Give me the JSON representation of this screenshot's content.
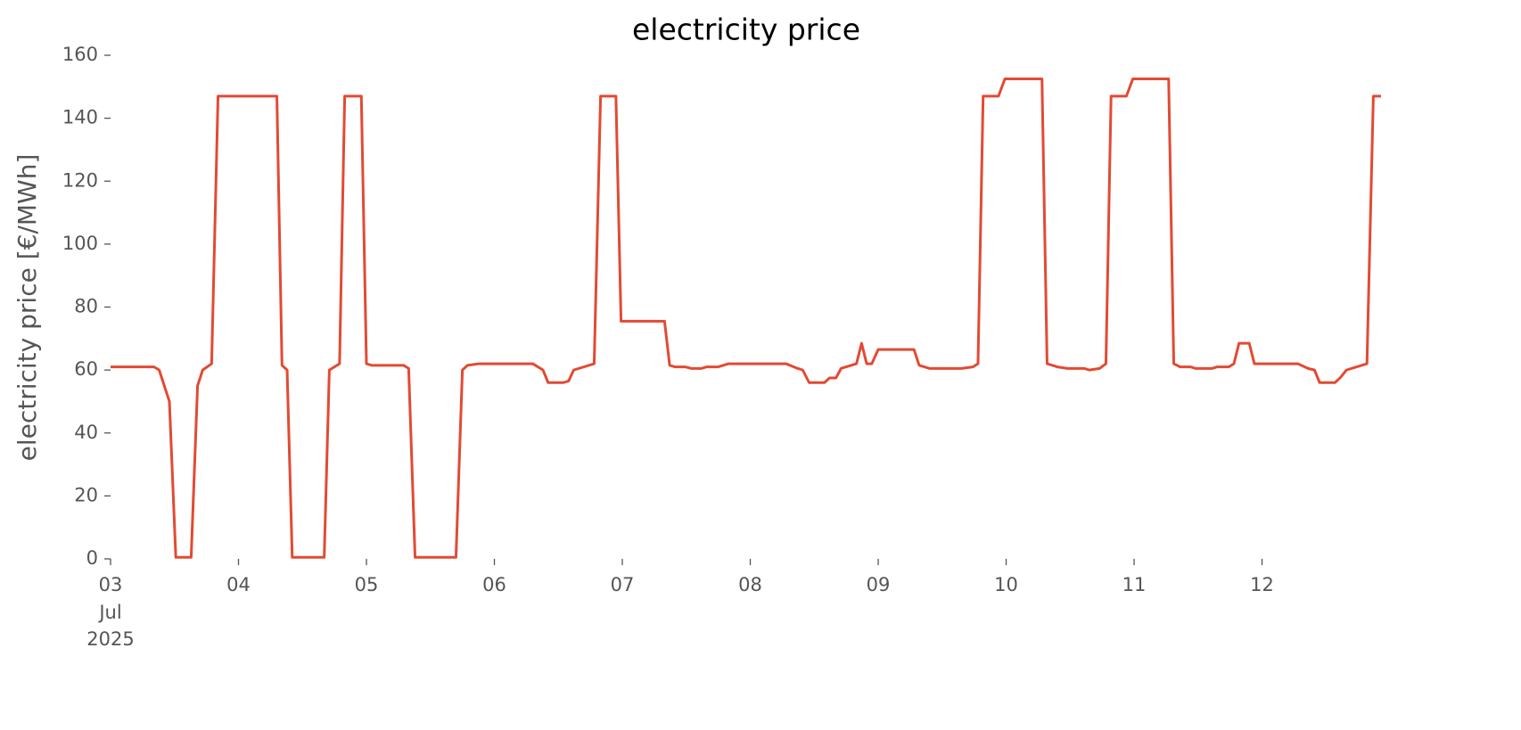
{
  "chart_data": {
    "type": "line",
    "title": "electricity price",
    "ylabel": "electricity price [€/MWh]",
    "x": [
      3.0,
      3.34,
      3.38,
      3.46,
      3.51,
      3.63,
      3.68,
      3.72,
      3.79,
      3.84,
      4.3,
      4.34,
      4.38,
      4.42,
      4.67,
      4.71,
      4.79,
      4.83,
      4.96,
      5.0,
      5.04,
      5.29,
      5.33,
      5.38,
      5.7,
      5.75,
      5.79,
      5.88,
      6.3,
      6.38,
      6.42,
      6.54,
      6.58,
      6.62,
      6.78,
      6.83,
      6.95,
      6.99,
      7.33,
      7.37,
      7.41,
      7.49,
      7.54,
      7.62,
      7.66,
      7.75,
      7.83,
      8.28,
      8.37,
      8.41,
      8.46,
      8.58,
      8.62,
      8.67,
      8.71,
      8.83,
      8.87,
      8.91,
      8.95,
      9.0,
      9.28,
      9.32,
      9.4,
      9.65,
      9.74,
      9.78,
      9.82,
      9.94,
      9.99,
      10.28,
      10.32,
      10.4,
      10.48,
      10.61,
      10.65,
      10.73,
      10.78,
      10.82,
      10.94,
      10.99,
      11.27,
      11.31,
      11.36,
      11.44,
      11.48,
      11.61,
      11.65,
      11.74,
      11.78,
      11.82,
      11.9,
      11.94,
      12.28,
      12.36,
      12.41,
      12.45,
      12.57,
      12.61,
      12.66,
      12.82,
      12.87,
      12.93
    ],
    "values": [
      61,
      61,
      60,
      50,
      0.5,
      0.5,
      55,
      60,
      62,
      147,
      147,
      61.5,
      60,
      0.5,
      0.5,
      60,
      62,
      147,
      147,
      62,
      61.5,
      61.5,
      60.5,
      0.5,
      0.5,
      60,
      61.5,
      62,
      62,
      60,
      56,
      56,
      56.5,
      60,
      62,
      147,
      147,
      75.5,
      75.5,
      61.5,
      61,
      61,
      60.5,
      60.5,
      61,
      61,
      62,
      62,
      60.5,
      60,
      56,
      56,
      57.5,
      57.5,
      60.5,
      62,
      68.5,
      62,
      62,
      66.5,
      66.5,
      61.5,
      60.5,
      60.5,
      61,
      62,
      147,
      147,
      152.5,
      152.5,
      62,
      61,
      60.5,
      60.5,
      60,
      60.5,
      62,
      147,
      147,
      152.5,
      152.5,
      62,
      61,
      61,
      60.5,
      60.5,
      61,
      61,
      62,
      68.5,
      68.5,
      62,
      62,
      60.5,
      60,
      56,
      56,
      57.5,
      60,
      62,
      147,
      147
    ],
    "color": "#e24a33",
    "xlim": [
      3,
      12.93
    ],
    "xticks": [
      {
        "value": 3,
        "label": "03"
      },
      {
        "value": 4,
        "label": "04"
      },
      {
        "value": 5,
        "label": "05"
      },
      {
        "value": 6,
        "label": "06"
      },
      {
        "value": 7,
        "label": "07"
      },
      {
        "value": 8,
        "label": "08"
      },
      {
        "value": 9,
        "label": "09"
      },
      {
        "value": 10,
        "label": "10"
      },
      {
        "value": 11,
        "label": "11"
      },
      {
        "value": 12,
        "label": "12"
      }
    ],
    "x_tick_sublabels": [
      "Jul",
      "2025"
    ],
    "ylim": [
      0,
      160
    ],
    "yticks": [
      0,
      20,
      40,
      60,
      80,
      100,
      120,
      140,
      160
    ],
    "grid": false
  }
}
